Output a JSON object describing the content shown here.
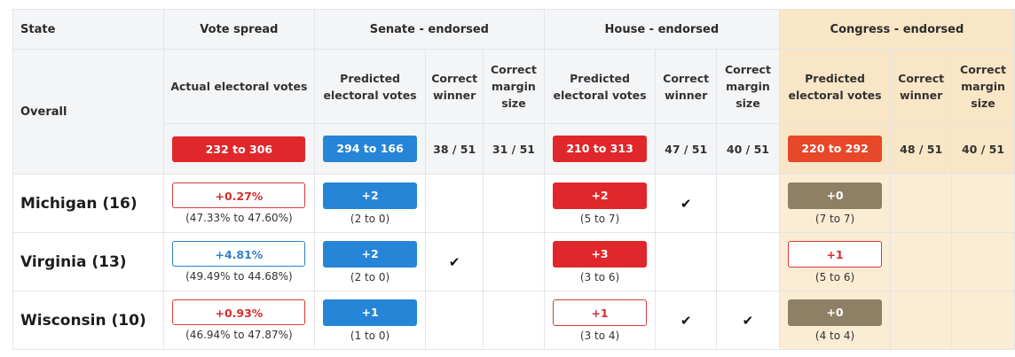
{
  "headers": {
    "state": "State",
    "overall": "Overall",
    "vote_spread": "Vote spread",
    "senate": "Senate - endorsed",
    "house": "House - endorsed",
    "congress": "Congress - endorsed",
    "actual_ev": "Actual electoral votes",
    "predicted_ev": "Predicted electoral votes",
    "correct_winner": "Correct winner",
    "correct_margin": "Correct margin size"
  },
  "overall": {
    "actual": "232 to 306",
    "senate_pred": "294 to 166",
    "senate_winner": "38 / 51",
    "senate_margin": "31 / 51",
    "house_pred": "210 to 313",
    "house_winner": "47 / 51",
    "house_margin": "40 / 51",
    "congress_pred": "220 to 292",
    "congress_winner": "48 / 51",
    "congress_margin": "40 / 51"
  },
  "check_glyph": "✔",
  "rows": [
    {
      "state": "Michigan (16)",
      "spread": "+0.27%",
      "spread_detail": "(47.33% to 47.60%)",
      "senate": "+2",
      "senate_detail": "(2 to 0)",
      "house": "+2",
      "house_detail": "(5 to 7)",
      "congress": "+0",
      "congress_detail": "(7 to 7)"
    },
    {
      "state": "Virginia (13)",
      "spread": "+4.81%",
      "spread_detail": "(49.49% to 44.68%)",
      "senate": "+2",
      "senate_detail": "(2 to 0)",
      "house": "+3",
      "house_detail": "(3 to 6)",
      "congress": "+1",
      "congress_detail": "(5 to 6)"
    },
    {
      "state": "Wisconsin (10)",
      "spread": "+0.93%",
      "spread_detail": "(46.94% to 47.87%)",
      "senate": "+1",
      "senate_detail": "(1 to 0)",
      "house": "+1",
      "house_detail": "(3 to 4)",
      "congress": "+0",
      "congress_detail": "(4 to 4)"
    }
  ],
  "colors": {
    "red": "#e0272b",
    "blue": "#2685d6",
    "orange": "#e7482a",
    "olive": "#8f7f65",
    "congress_bg": "#f9e6c6"
  }
}
